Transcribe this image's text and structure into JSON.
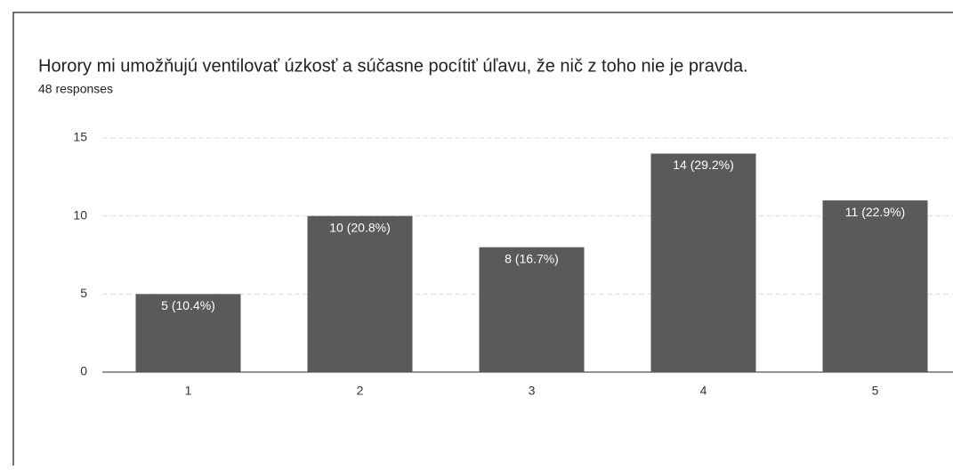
{
  "chart_data": {
    "type": "bar",
    "title": "Horory mi umožňujú ventilovať úzkosť a súčasne pocítiť úľavu, že nič z toho nie je pravda.",
    "subtitle": "48 responses",
    "categories": [
      "1",
      "2",
      "3",
      "4",
      "5"
    ],
    "values": [
      5,
      10,
      8,
      14,
      11
    ],
    "value_labels": [
      "5 (10.4%)",
      "10 (20.8%)",
      "8 (16.7%)",
      "14 (29.2%)",
      "11 (22.9%)"
    ],
    "color": "#5a5a5a",
    "ylim": [
      0,
      15
    ],
    "yticks": [
      0,
      5,
      10,
      15
    ],
    "grid": true
  }
}
